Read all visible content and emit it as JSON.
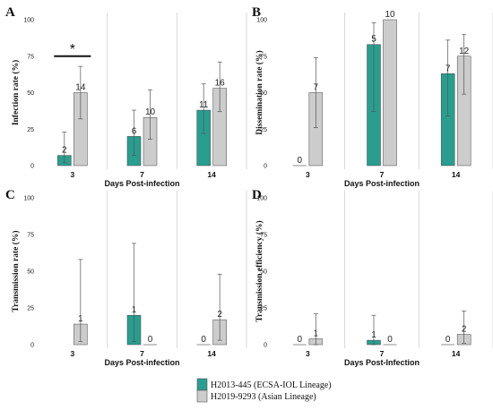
{
  "chart_data": [
    {
      "panel": "A",
      "type": "bar",
      "ylabel": "Infection rate (%)",
      "xlabel": "Days Post-infection",
      "categories": [
        "3",
        "7",
        "14"
      ],
      "ylim": [
        0,
        100
      ],
      "yticks": [
        "0",
        "25",
        "50",
        "75",
        "100"
      ],
      "series": [
        {
          "name": "H2013-445 (ECSA-IOL Lineage)",
          "values": [
            7,
            20,
            38
          ],
          "err_low": [
            2,
            7,
            22
          ],
          "err_high": [
            23,
            38,
            56
          ],
          "n": [
            "2",
            "6",
            "11"
          ]
        },
        {
          "name": "H2019-9293 (Asian Lineage)",
          "values": [
            50,
            33,
            53
          ],
          "err_low": [
            32,
            18,
            37
          ],
          "err_high": [
            68,
            52,
            71
          ],
          "n": [
            "14",
            "10",
            "16"
          ]
        }
      ],
      "annotation": {
        "text": "*",
        "category": 0
      }
    },
    {
      "panel": "B",
      "type": "bar",
      "ylabel": "Dissemination rate (%)",
      "xlabel": "Days Post-infection",
      "categories": [
        "3",
        "7",
        "14"
      ],
      "ylim": [
        0,
        100
      ],
      "yticks": [
        "0",
        "25",
        "50",
        "75",
        "100"
      ],
      "series": [
        {
          "name": "H2013-445 (ECSA-IOL Lineage)",
          "values": [
            0,
            83,
            63
          ],
          "err_low": [
            null,
            37,
            34
          ],
          "err_high": [
            null,
            98,
            86
          ],
          "n": [
            "0",
            "5",
            "7"
          ]
        },
        {
          "name": "H2019-9293 (Asian Lineage)",
          "values": [
            50,
            100,
            75
          ],
          "err_low": [
            26,
            null,
            49
          ],
          "err_high": [
            74,
            null,
            90
          ],
          "n": [
            "7",
            "10",
            "12"
          ]
        }
      ]
    },
    {
      "panel": "C",
      "type": "bar",
      "ylabel": "Transmission rate (%)",
      "xlabel": "Days Post-infection",
      "categories": [
        "3",
        "7",
        "14"
      ],
      "ylim": [
        0,
        100
      ],
      "yticks": [
        "0",
        "25",
        "50",
        "75",
        "100"
      ],
      "series": [
        {
          "name": "H2013-445 (ECSA-IOL Lineage)",
          "values": [
            null,
            20,
            0
          ],
          "err_low": [
            null,
            2,
            null
          ],
          "err_high": [
            null,
            69,
            null
          ],
          "n": [
            "",
            "1",
            "0"
          ]
        },
        {
          "name": "H2019-9293 (Asian Lineage)",
          "values": [
            14,
            0,
            17
          ],
          "err_low": [
            2,
            null,
            3
          ],
          "err_high": [
            58,
            null,
            48
          ],
          "n": [
            "1",
            "0",
            "2"
          ]
        }
      ]
    },
    {
      "panel": "D",
      "type": "bar",
      "ylabel": "Transmission efficiency (%)",
      "xlabel": "Days Post-Infection",
      "categories": [
        "3",
        "7",
        "14"
      ],
      "ylim": [
        0,
        100
      ],
      "yticks": [
        "0",
        "25",
        "50",
        "75",
        "100"
      ],
      "series": [
        {
          "name": "H2013-445 (ECSA-IOL Lineage)",
          "values": [
            0,
            3,
            0
          ],
          "err_low": [
            null,
            0,
            null
          ],
          "err_high": [
            null,
            20,
            null
          ],
          "n": [
            "0",
            "1",
            "0"
          ]
        },
        {
          "name": "H2019-9293 (Asian Lineage)",
          "values": [
            4,
            0,
            7
          ],
          "err_low": [
            0,
            null,
            1
          ],
          "err_high": [
            21,
            null,
            23
          ],
          "n": [
            "1",
            "0",
            "2"
          ]
        }
      ]
    }
  ],
  "colors": {
    "teal": "#2a9d8f",
    "grey": "#cccccc",
    "error_bar": "#555555",
    "divider": "#d0d0d0"
  },
  "legend": [
    {
      "label": "H2013-445  (ECSA-IOL Lineage)",
      "color": "#2a9d8f"
    },
    {
      "label": "H2019-9293  (Asian Lineage)",
      "color": "#cccccc"
    }
  ]
}
